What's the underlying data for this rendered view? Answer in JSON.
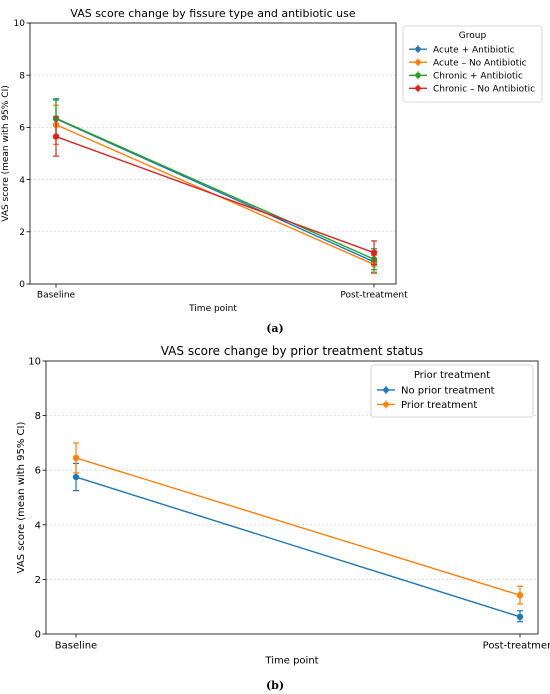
{
  "colors": {
    "blue": "#1f77b4",
    "orange": "#ff7f0e",
    "green": "#2ca02c",
    "red": "#d62728",
    "grid": "#b0b0b0"
  },
  "chart_data": [
    {
      "id": "a",
      "type": "line",
      "caption": "(a)",
      "title": "VAS score change by fissure type and antibiotic use",
      "xlabel": "Time point",
      "ylabel": "VAS score (mean with 95% CI)",
      "categories": [
        "Baseline",
        "Post-treatment"
      ],
      "ylim": [
        0,
        10
      ],
      "yticks": [
        0,
        2,
        4,
        6,
        8,
        10
      ],
      "grid": "horizontal dashed",
      "legend": {
        "title": "Group",
        "placement": "outside right"
      },
      "series": [
        {
          "name": "Acute + Antibiotic",
          "color": "#1f77b4",
          "values": [
            6.33,
            0.85
          ],
          "ci_low": [
            5.6,
            0.45
          ],
          "ci_high": [
            7.05,
            1.25
          ]
        },
        {
          "name": "Acute – No Antibiotic",
          "color": "#ff7f0e",
          "values": [
            6.1,
            0.75
          ],
          "ci_low": [
            5.35,
            0.4
          ],
          "ci_high": [
            6.85,
            1.1
          ]
        },
        {
          "name": "Chronic + Antibiotic",
          "color": "#2ca02c",
          "values": [
            6.35,
            0.95
          ],
          "ci_low": [
            5.6,
            0.55
          ],
          "ci_high": [
            7.1,
            1.35
          ]
        },
        {
          "name": "Chronic – No Antibiotic",
          "color": "#d62728",
          "values": [
            5.65,
            1.2
          ],
          "ci_low": [
            4.9,
            0.75
          ],
          "ci_high": [
            6.4,
            1.65
          ]
        }
      ]
    },
    {
      "id": "b",
      "type": "line",
      "caption": "(b)",
      "title": "VAS score change by prior treatment status",
      "xlabel": "Time point",
      "ylabel": "VAS score (mean with 95% CI)",
      "categories": [
        "Baseline",
        "Post-treatment"
      ],
      "ylim": [
        0,
        10
      ],
      "yticks": [
        0,
        2,
        4,
        6,
        8,
        10
      ],
      "grid": "horizontal dashed",
      "legend": {
        "title": "Prior treatment",
        "placement": "top-right"
      },
      "series": [
        {
          "name": "No prior treatment",
          "color": "#1f77b4",
          "values": [
            5.75,
            0.63
          ],
          "ci_low": [
            5.25,
            0.45
          ],
          "ci_high": [
            6.25,
            0.85
          ]
        },
        {
          "name": "Prior treatment",
          "color": "#ff7f0e",
          "values": [
            6.45,
            1.42
          ],
          "ci_low": [
            5.9,
            1.1
          ],
          "ci_high": [
            7.0,
            1.75
          ]
        }
      ]
    }
  ]
}
